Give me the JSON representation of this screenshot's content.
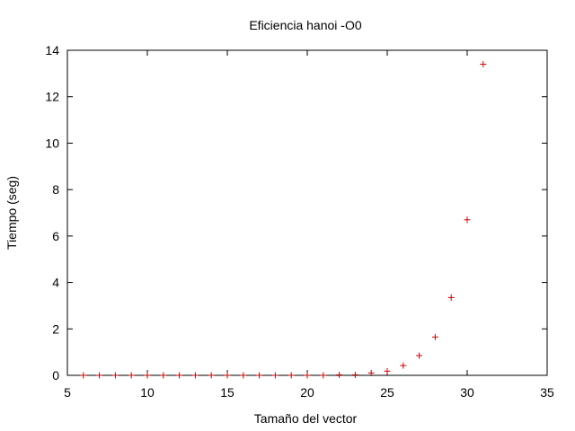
{
  "chart_data": {
    "type": "scatter",
    "title": "Eficiencia hanoi -O0",
    "xlabel": "Tamaño del vector",
    "ylabel": "Tiempo (seg)",
    "xlim": [
      5,
      35
    ],
    "ylim": [
      0,
      14
    ],
    "xticks": [
      5,
      10,
      15,
      20,
      25,
      30,
      35
    ],
    "yticks": [
      0,
      2,
      4,
      6,
      8,
      10,
      12,
      14
    ],
    "grid": false,
    "marker": "plus",
    "marker_color": "#cc0000",
    "series": [
      {
        "x": [
          6,
          7,
          8,
          9,
          10,
          11,
          12,
          13,
          14,
          15,
          16,
          17,
          18,
          19,
          20,
          21,
          22,
          23,
          24,
          25,
          26,
          27,
          28,
          29,
          30,
          31
        ],
        "y": [
          0,
          0,
          0,
          0,
          0,
          0,
          0,
          0,
          0,
          0,
          0,
          0,
          0,
          0,
          0,
          0,
          0.02,
          0.02,
          0.1,
          0.18,
          0.42,
          0.85,
          1.65,
          3.35,
          6.7,
          13.4
        ]
      }
    ]
  }
}
